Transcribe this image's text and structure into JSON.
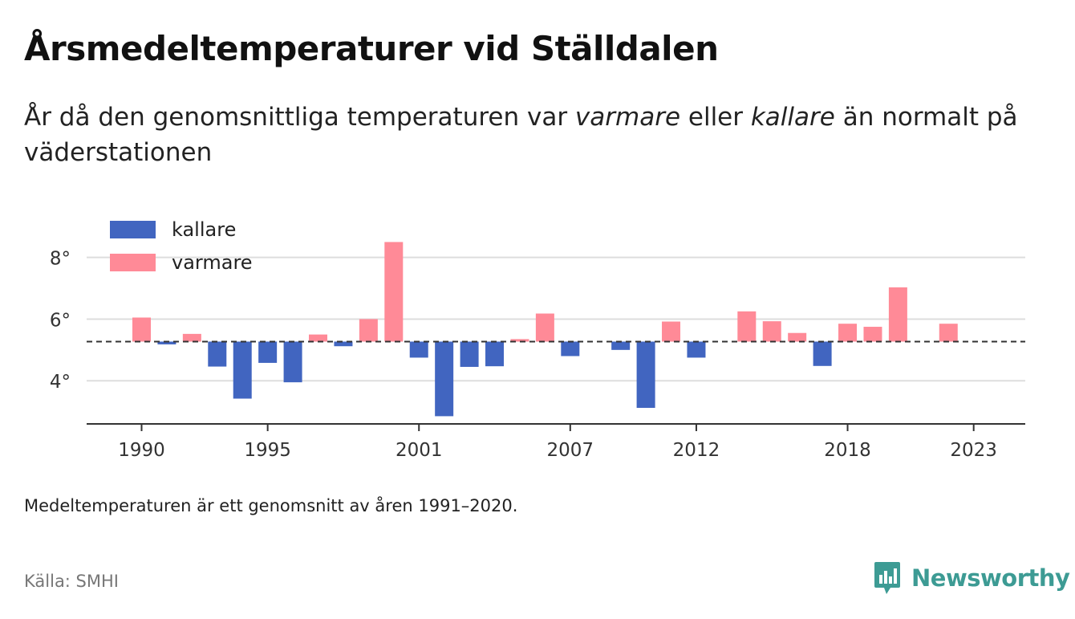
{
  "header": {
    "title": "Årsmedeltemperaturer vid Ställdalen",
    "subtitle_part1": "År då den genomsnittliga temperaturen var ",
    "subtitle_em1": "varmare",
    "subtitle_part2": " eller ",
    "subtitle_em2": "kallare",
    "subtitle_part3": " än normalt på väderstationen"
  },
  "footer": {
    "note": "Medeltemperaturen är ett genomsnitt av åren 1991–2020.",
    "source": "Källa: SMHI",
    "brand": "Newsworthy"
  },
  "colors": {
    "kallare": "#4165c0",
    "varmare": "#ff8a97",
    "baseline": "#333333",
    "grid": "#dddddd",
    "brand": "#3d9b94"
  },
  "chart_data": {
    "type": "bar",
    "baseline": 5.27,
    "xlim": [
      1989,
      2025
    ],
    "ylim": [
      2.6,
      9.0
    ],
    "yticks": [
      4,
      6,
      8
    ],
    "ytick_labels": [
      "4°",
      "6°",
      "8°"
    ],
    "xticks": [
      1990,
      1995,
      2001,
      2007,
      2012,
      2018,
      2023
    ],
    "xtick_labels": [
      "1990",
      "1995",
      "2001",
      "2007",
      "2012",
      "2018",
      "2023"
    ],
    "grid": true,
    "legend": {
      "position": "top-left",
      "entries": [
        {
          "label": "kallare",
          "color": "#4165c0"
        },
        {
          "label": "varmare",
          "color": "#ff8a97"
        }
      ]
    },
    "baseline_label": "",
    "values": [
      {
        "year": 1990,
        "value": 6.05
      },
      {
        "year": 1991,
        "value": 5.18
      },
      {
        "year": 1992,
        "value": 5.52
      },
      {
        "year": 1993,
        "value": 4.46
      },
      {
        "year": 1994,
        "value": 3.42
      },
      {
        "year": 1995,
        "value": 4.58
      },
      {
        "year": 1996,
        "value": 3.95
      },
      {
        "year": 1997,
        "value": 5.5
      },
      {
        "year": 1998,
        "value": 5.12
      },
      {
        "year": 1999,
        "value": 6.0
      },
      {
        "year": 2000,
        "value": 8.5
      },
      {
        "year": 2001,
        "value": 4.75
      },
      {
        "year": 2002,
        "value": 2.85
      },
      {
        "year": 2003,
        "value": 4.45
      },
      {
        "year": 2004,
        "value": 4.47
      },
      {
        "year": 2005,
        "value": 5.35
      },
      {
        "year": 2006,
        "value": 6.18
      },
      {
        "year": 2007,
        "value": 4.8
      },
      {
        "year": 2009,
        "value": 5.0
      },
      {
        "year": 2010,
        "value": 3.12
      },
      {
        "year": 2011,
        "value": 5.92
      },
      {
        "year": 2012,
        "value": 4.75
      },
      {
        "year": 2014,
        "value": 6.25
      },
      {
        "year": 2015,
        "value": 5.93
      },
      {
        "year": 2016,
        "value": 5.55
      },
      {
        "year": 2017,
        "value": 4.48
      },
      {
        "year": 2018,
        "value": 5.85
      },
      {
        "year": 2019,
        "value": 5.75
      },
      {
        "year": 2020,
        "value": 7.03
      },
      {
        "year": 2022,
        "value": 5.85
      }
    ]
  }
}
